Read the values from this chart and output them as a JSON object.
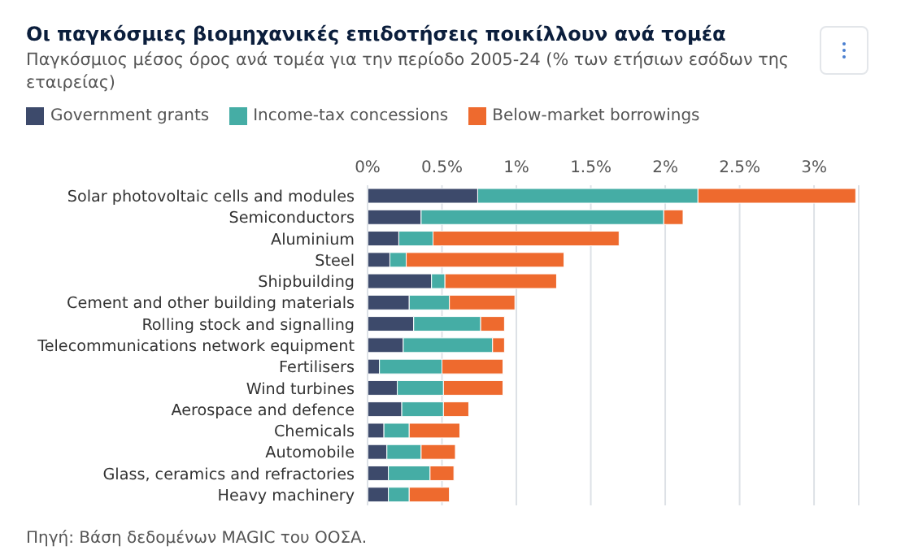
{
  "chart_data": {
    "type": "bar",
    "orientation": "horizontal",
    "stacked": true,
    "title": "Οι παγκόσμιες βιομηχανικές επιδοτήσεις ποικίλλουν ανά τομέα",
    "subtitle": "Παγκόσμιος μέσος όρος ανά τομέα για την περίοδο 2005-24 (% των ετήσιων εσόδων της εταιρείας)",
    "categories": [
      "Solar photovoltaic cells and modules",
      "Semiconductors",
      "Aluminium",
      "Steel",
      "Shipbuilding",
      "Cement and other building materials",
      "Rolling stock and signalling",
      "Telecommunications network equipment",
      "Fertilisers",
      "Wind turbines",
      "Aerospace and defence",
      "Chemicals",
      "Automobile",
      "Glass, ceramics and refractories",
      "Heavy machinery"
    ],
    "series": [
      {
        "name": "Government grants",
        "color": "#3d4a6b",
        "values": [
          0.74,
          0.36,
          0.21,
          0.15,
          0.43,
          0.28,
          0.31,
          0.24,
          0.08,
          0.2,
          0.23,
          0.11,
          0.13,
          0.14,
          0.14
        ]
      },
      {
        "name": "Income-tax concessions",
        "color": "#45ada5",
        "values": [
          1.48,
          1.63,
          0.23,
          0.11,
          0.09,
          0.27,
          0.45,
          0.6,
          0.42,
          0.31,
          0.28,
          0.17,
          0.23,
          0.28,
          0.14
        ]
      },
      {
        "name": "Below-market borrowings",
        "color": "#ee6a2e",
        "values": [
          1.06,
          0.13,
          1.25,
          1.06,
          0.75,
          0.44,
          0.16,
          0.08,
          0.41,
          0.4,
          0.17,
          0.34,
          0.23,
          0.16,
          0.27
        ]
      }
    ],
    "xlim": [
      0,
      3.3
    ],
    "xticks": [
      {
        "value": 0,
        "label": "0%"
      },
      {
        "value": 0.5,
        "label": "0.5%"
      },
      {
        "value": 1,
        "label": "1%"
      },
      {
        "value": 1.5,
        "label": "1.5%"
      },
      {
        "value": 2,
        "label": "2%"
      },
      {
        "value": 2.5,
        "label": "2.5%"
      },
      {
        "value": 3,
        "label": "3%"
      }
    ],
    "grid": "x",
    "legend": "top left",
    "annotations": [
      "Πηγή: Βάση δεδομένων MAGIC του ΟΟΣΑ."
    ]
  }
}
